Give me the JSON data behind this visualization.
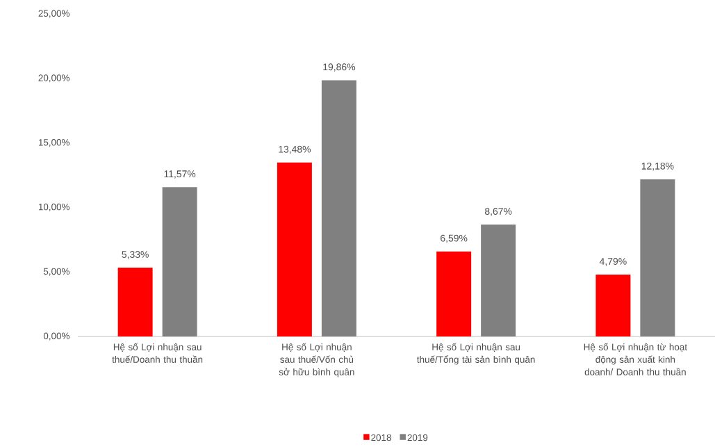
{
  "chart_data": {
    "type": "bar",
    "categories": [
      "Hệ số Lợi nhuận sau thuế/Doanh thu thuần",
      "Hệ số Lợi nhuận sau thuế/Vốn chủ sở hữu bình quân",
      "Hệ số Lợi nhuận sau thuế/Tổng tài sản bình quân",
      "Hệ số Lợi nhuận từ hoạt động sản xuất kinh doanh/ Doanh thu thuần"
    ],
    "series": [
      {
        "name": "2018",
        "color": "#ff0000",
        "values": [
          5.33,
          13.48,
          6.59,
          4.79
        ],
        "value_labels": [
          "5,33%",
          "13,48%",
          "6,59%",
          "4,79%"
        ]
      },
      {
        "name": "2019",
        "color": "#808080",
        "values": [
          11.57,
          19.86,
          8.67,
          12.18
        ],
        "value_labels": [
          "11,57%",
          "19,86%",
          "8,67%",
          "12,18%"
        ]
      }
    ],
    "ylim": [
      0,
      25
    ],
    "yticks": [
      {
        "value": 0,
        "label": "0,00%"
      },
      {
        "value": 5,
        "label": "5,00%"
      },
      {
        "value": 10,
        "label": "10,00%"
      },
      {
        "value": 15,
        "label": "15,00%"
      },
      {
        "value": 20,
        "label": "20,00%"
      },
      {
        "value": 25,
        "label": "25,00%"
      }
    ],
    "grid": false,
    "legend": "bottom"
  }
}
